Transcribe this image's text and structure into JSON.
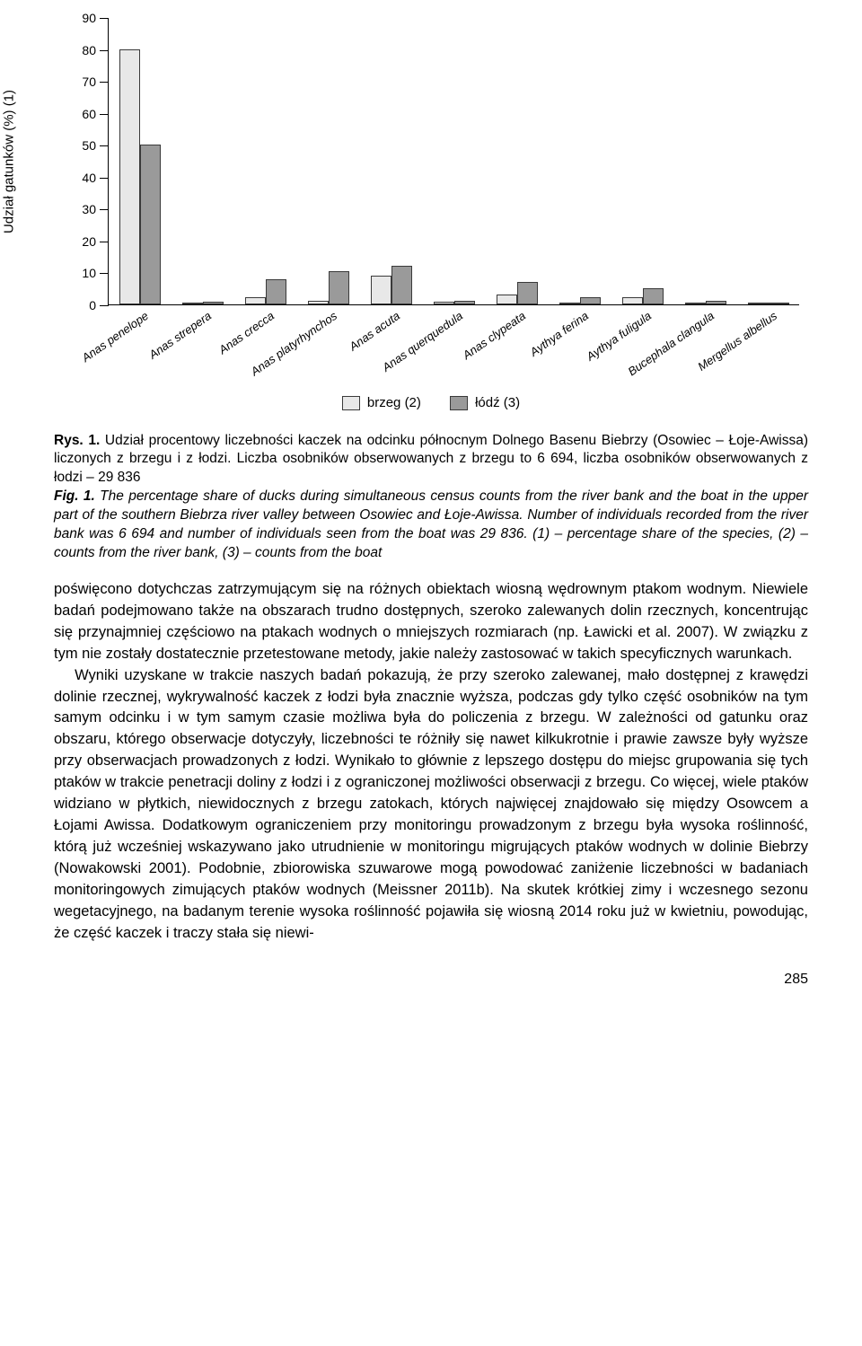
{
  "chart": {
    "type": "bar",
    "y_axis_label": "Udział gatunków (%) (1)",
    "ylim": [
      0,
      90
    ],
    "ytick_step": 10,
    "yticks": [
      0,
      10,
      20,
      30,
      40,
      50,
      60,
      70,
      80,
      90
    ],
    "categories": [
      "Anas penelope",
      "Anas strepera",
      "Anas crecca",
      "Anas platyrhynchos",
      "Anas acuta",
      "Anas querquedula",
      "Anas clypeata",
      "Aythya ferina",
      "Aythya fuligula",
      "Bucephala clangula",
      "Mergellus albellus"
    ],
    "series": [
      {
        "name": "brzeg (2)",
        "color": "#e8e8e8",
        "values": [
          80,
          0.6,
          2.2,
          1.2,
          9,
          0.8,
          3.2,
          0.6,
          2.2,
          0.6,
          0.3
        ]
      },
      {
        "name": "łódź (3)",
        "color": "#9a9a9a",
        "values": [
          50,
          0.8,
          8,
          10.5,
          12,
          1.2,
          7,
          2.2,
          5.2,
          1.2,
          0.6
        ]
      }
    ],
    "bar_border_color": "#3a3a3a",
    "background_color": "#ffffff",
    "axis_color": "#000000",
    "label_fontsize": 15,
    "tick_fontsize": 14,
    "category_fontsize": 13
  },
  "legend": {
    "items": [
      {
        "label": "brzeg (2)",
        "color": "#e8e8e8"
      },
      {
        "label": "łódź (3)",
        "color": "#9a9a9a"
      }
    ]
  },
  "caption": {
    "pl_label": "Rys. 1.",
    "pl_text": " Udział procentowy liczebności kaczek na odcinku północnym Dolnego Basenu Biebrzy (Osowiec – Łoje-Awissa) liczonych z brzegu i z łodzi. Liczba osobników obserwowanych z brzegu to 6 694, liczba osobników obserwowanych z łodzi – 29 836",
    "en_label": "Fig. 1.",
    "en_text": " The percentage share of ducks during simultaneous census counts from the river bank and the boat in the upper part of the southern Biebrza river valley between Osowiec and Łoje-Awissa. Number of individuals recorded from the river bank was 6 694 and number of individuals seen from the boat was 29 836. (1) – percentage share of the species, (2) – counts from the river bank, (3) – counts from the boat"
  },
  "body": {
    "p1": "poświęcono dotychczas zatrzymującym się na różnych obiektach wiosną wędrownym ptakom wodnym. Niewiele badań podejmowano także na obszarach trudno dostępnych, szeroko zalewanych dolin rzecznych, koncentrując się przynajmniej częściowo na ptakach wodnych o mniejszych rozmiarach (np. Ławicki et al. 2007). W związku z tym nie zostały dostatecznie przetestowane metody, jakie należy zastosować w takich specyficznych warunkach.",
    "p2": "Wyniki uzyskane w trakcie naszych badań pokazują, że przy szeroko zalewanej, mało dostępnej z krawędzi dolinie rzecznej, wykrywalność kaczek z łodzi była znacznie wyższa, podczas gdy tylko część osobników na tym samym odcinku i w tym samym czasie możliwa była do policzenia z brzegu. W zależności od gatunku oraz obszaru, którego obserwacje dotyczyły, liczebności te różniły się nawet kilkukrotnie i prawie zawsze były wyższe przy obserwacjach prowadzonych z łodzi. Wynikało to głównie z lepszego dostępu do miejsc grupowania się tych ptaków w trakcie penetracji doliny z łodzi i z ograniczonej możliwości obserwacji z brzegu. Co więcej, wiele ptaków widziano w płytkich, niewidocznych z brzegu zatokach, których najwięcej znajdowało się między Osowcem a Łojami Awissa. Dodatkowym ograniczeniem przy monitoringu prowadzonym z brzegu była wysoka roślinność, którą już wcześniej wskazywano jako utrudnienie w monitoringu migrujących ptaków wodnych w dolinie Biebrzy (Nowakowski 2001). Podobnie, zbiorowiska szuwarowe mogą powodować zaniżenie liczebności w badaniach monitoringowych zimujących ptaków wodnych (Meissner 2011b). Na skutek krótkiej zimy i wczesnego sezonu wegetacyjnego, na badanym terenie wysoka roślinność pojawiła się wiosną 2014 roku już w kwietniu, powodując, że część kaczek i traczy stała się niewi-"
  },
  "page_number": "285"
}
